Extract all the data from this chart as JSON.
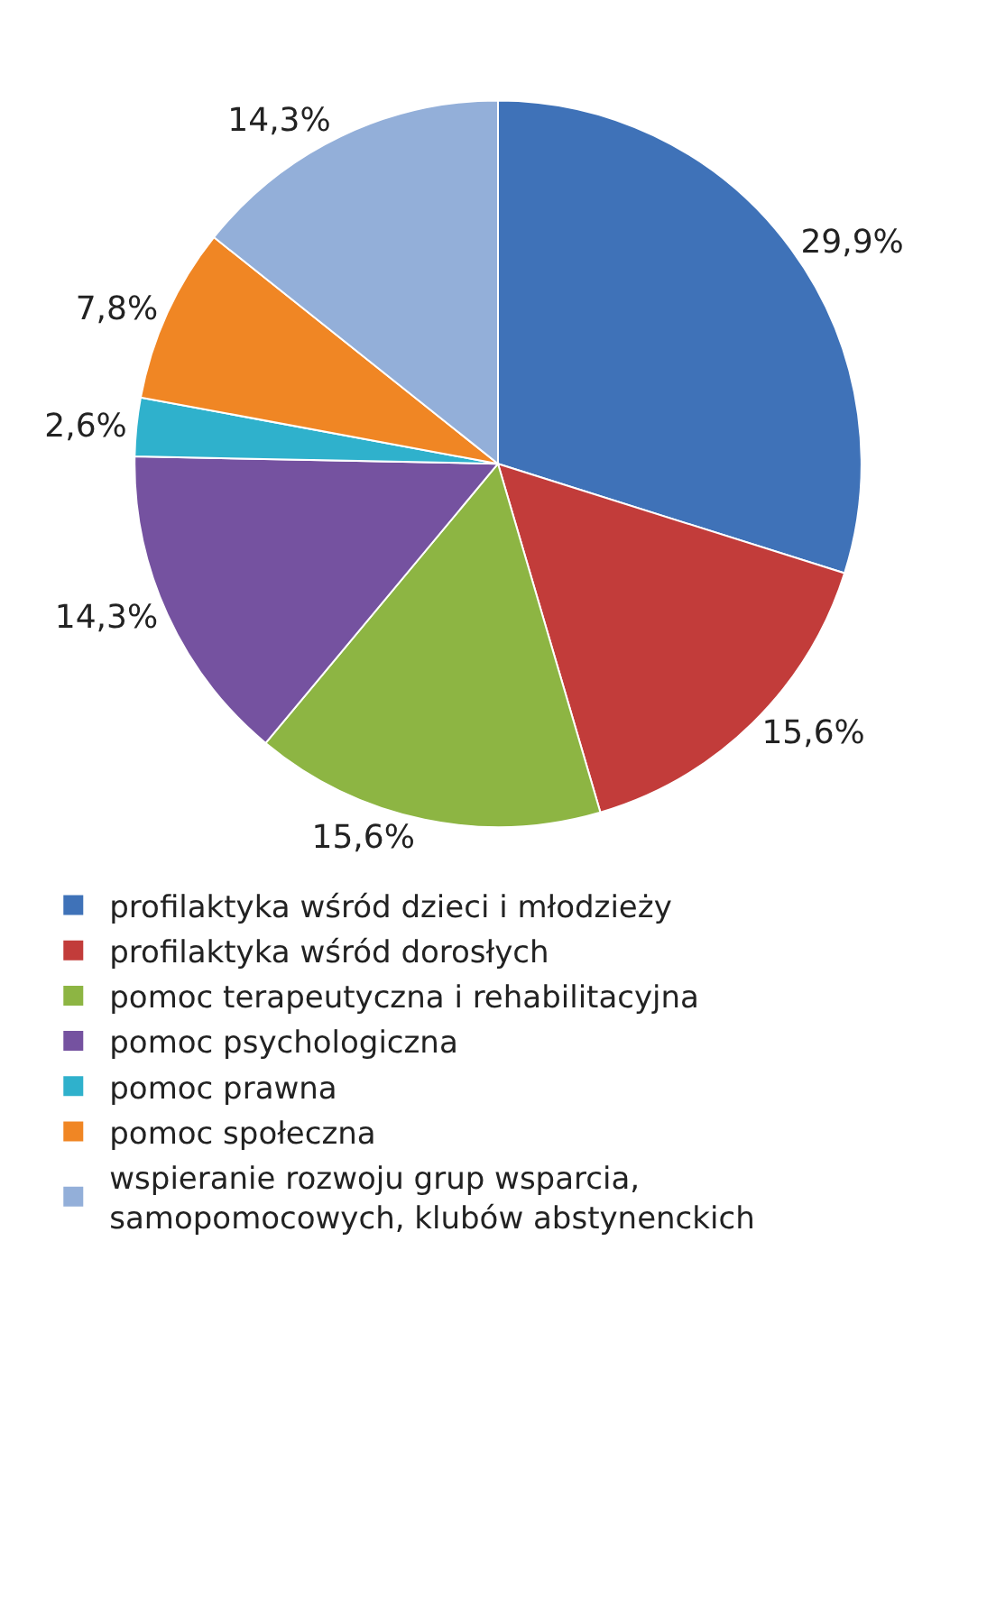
{
  "chart_data": {
    "type": "pie",
    "categories": [
      "profilaktyka wśród dzieci i młodzieży",
      "profilaktyka wśród dorosłych",
      "pomoc terapeutyczna i rehabilitacyjna",
      "pomoc psychologiczna",
      "pomoc prawna",
      "pomoc społeczna",
      "wspieranie rozwoju grup wsparcia, samopomocowych, klubów abstynenckich"
    ],
    "values": [
      29.9,
      15.6,
      15.6,
      14.3,
      2.6,
      7.8,
      14.3
    ],
    "value_labels": [
      "29,9%",
      "15,6%",
      "15,6%",
      "14,3%",
      "2,6%",
      "7,8%",
      "14,3%"
    ],
    "colors": [
      "#3f72b8",
      "#c23c3a",
      "#8db543",
      "#7552a0",
      "#2fb1cc",
      "#f08624",
      "#93afd9"
    ],
    "legend": "bottom"
  }
}
